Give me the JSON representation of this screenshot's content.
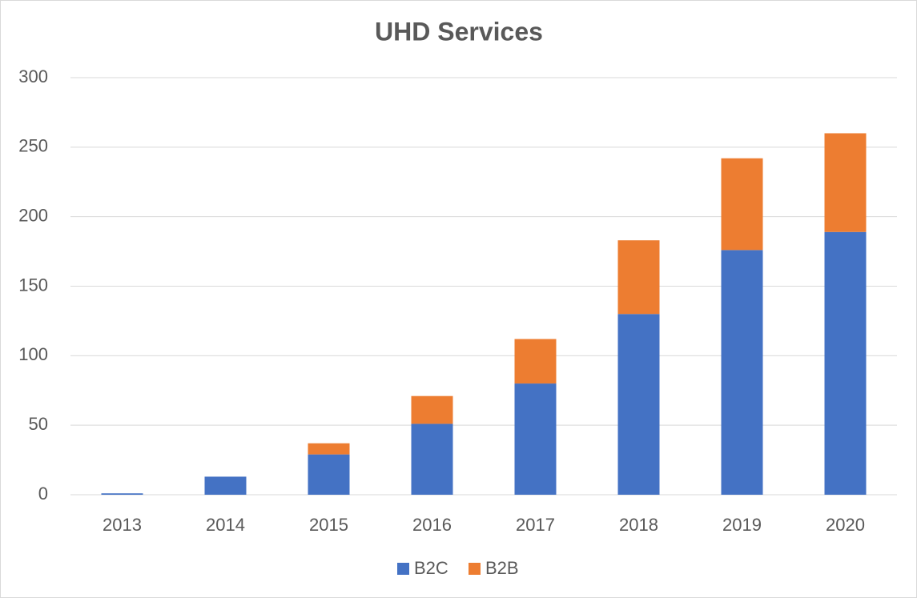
{
  "chart_data": {
    "type": "bar",
    "stacked": true,
    "title": "UHD Services",
    "categories": [
      "2013",
      "2014",
      "2015",
      "2016",
      "2017",
      "2018",
      "2019",
      "2020"
    ],
    "series": [
      {
        "name": "B2C",
        "color": "#4472c4",
        "values": [
          1,
          13,
          29,
          51,
          80,
          130,
          176,
          189
        ]
      },
      {
        "name": "B2B",
        "color": "#ed7d31",
        "values": [
          0,
          0,
          8,
          20,
          32,
          53,
          66,
          71
        ]
      }
    ],
    "ylim": [
      0,
      300
    ],
    "yticks": [
      0,
      50,
      100,
      150,
      200,
      250,
      300
    ],
    "grid": true,
    "legend": "bottom"
  }
}
